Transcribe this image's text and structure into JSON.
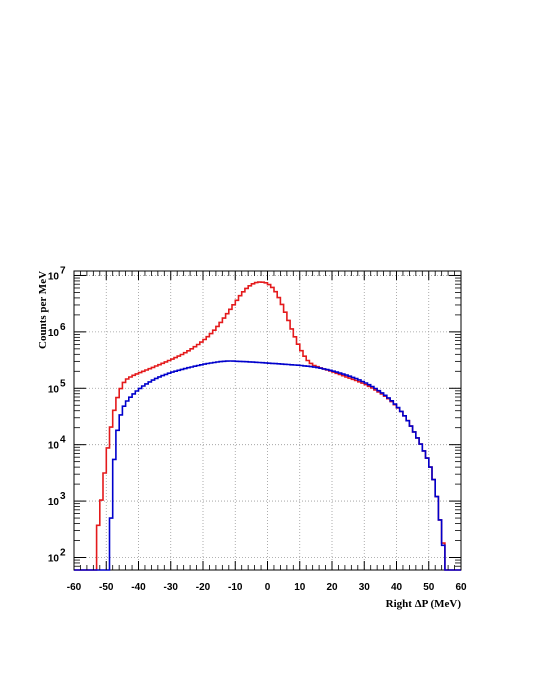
{
  "chart_data": {
    "type": "line",
    "title": "",
    "xlabel": "Right ΔP (MeV)",
    "ylabel": "Counts per MeV",
    "xlim": [
      -60,
      60
    ],
    "ylim": [
      60,
      12000000
    ],
    "yscale": "log",
    "grid": true,
    "legend": "none",
    "x_ticks": [
      -60,
      -50,
      -40,
      -30,
      -20,
      -10,
      0,
      10,
      20,
      30,
      40,
      50,
      60
    ],
    "y_ticks": [
      {
        "value": 100,
        "base": "10",
        "exp": "2"
      },
      {
        "value": 1000,
        "base": "10",
        "exp": "3"
      },
      {
        "value": 10000,
        "base": "10",
        "exp": "4"
      },
      {
        "value": 100000,
        "base": "10",
        "exp": "5"
      },
      {
        "value": 1000000,
        "base": "10",
        "exp": "6"
      },
      {
        "value": 10000000,
        "base": "10",
        "exp": "7"
      }
    ],
    "series": [
      {
        "color": "#e41a1c",
        "points": [
          [
            -53,
            230
          ],
          [
            -52,
            600
          ],
          [
            -51,
            1800
          ],
          [
            -50,
            5500
          ],
          [
            -49,
            14000
          ],
          [
            -48,
            30000
          ],
          [
            -47,
            55000
          ],
          [
            -46,
            85000
          ],
          [
            -45,
            115000
          ],
          [
            -44,
            140000
          ],
          [
            -42,
            165000
          ],
          [
            -40,
            185000
          ],
          [
            -38,
            205000
          ],
          [
            -36,
            228000
          ],
          [
            -34,
            255000
          ],
          [
            -32,
            285000
          ],
          [
            -30,
            320000
          ],
          [
            -28,
            360000
          ],
          [
            -26,
            410000
          ],
          [
            -24,
            480000
          ],
          [
            -22,
            570000
          ],
          [
            -20,
            690000
          ],
          [
            -18,
            870000
          ],
          [
            -16,
            1150000
          ],
          [
            -14,
            1600000
          ],
          [
            -12,
            2300000
          ],
          [
            -10,
            3300000
          ],
          [
            -8,
            4800000
          ],
          [
            -6,
            6300000
          ],
          [
            -4,
            7400000
          ],
          [
            -2,
            7700000
          ],
          [
            0,
            7300000
          ],
          [
            2,
            5800000
          ],
          [
            4,
            3600000
          ],
          [
            6,
            1900000
          ],
          [
            8,
            950000
          ],
          [
            10,
            520000
          ],
          [
            12,
            330000
          ],
          [
            14,
            260000
          ],
          [
            16,
            235000
          ],
          [
            18,
            215000
          ],
          [
            20,
            198000
          ],
          [
            22,
            180000
          ],
          [
            24,
            163000
          ],
          [
            26,
            148000
          ],
          [
            28,
            134000
          ],
          [
            30,
            120000
          ],
          [
            32,
            105000
          ],
          [
            34,
            90000
          ],
          [
            36,
            76000
          ],
          [
            38,
            62000
          ],
          [
            40,
            48000
          ],
          [
            42,
            36000
          ],
          [
            44,
            24000
          ],
          [
            46,
            15000
          ],
          [
            48,
            9000
          ],
          [
            50,
            5000
          ],
          [
            51,
            3200
          ],
          [
            52,
            1800
          ],
          [
            53,
            800
          ],
          [
            54,
            270
          ],
          [
            55,
            120
          ]
        ]
      },
      {
        "color": "#0000cc",
        "points": [
          [
            -49,
            100
          ],
          [
            -48,
            2500
          ],
          [
            -47,
            12000
          ],
          [
            -46,
            27000
          ],
          [
            -45,
            42000
          ],
          [
            -44,
            55000
          ],
          [
            -42,
            75000
          ],
          [
            -40,
            95000
          ],
          [
            -38,
            115000
          ],
          [
            -36,
            135000
          ],
          [
            -34,
            155000
          ],
          [
            -32,
            172000
          ],
          [
            -30,
            190000
          ],
          [
            -28,
            205000
          ],
          [
            -26,
            220000
          ],
          [
            -24,
            235000
          ],
          [
            -22,
            250000
          ],
          [
            -20,
            265000
          ],
          [
            -18,
            278000
          ],
          [
            -16,
            290000
          ],
          [
            -14,
            300000
          ],
          [
            -12,
            305000
          ],
          [
            -10,
            302000
          ],
          [
            -8,
            298000
          ],
          [
            -6,
            295000
          ],
          [
            -4,
            290000
          ],
          [
            -2,
            285000
          ],
          [
            0,
            280000
          ],
          [
            2,
            275000
          ],
          [
            4,
            270000
          ],
          [
            6,
            265000
          ],
          [
            8,
            260000
          ],
          [
            10,
            255000
          ],
          [
            12,
            248000
          ],
          [
            14,
            240000
          ],
          [
            16,
            230000
          ],
          [
            18,
            218000
          ],
          [
            20,
            205000
          ],
          [
            22,
            190000
          ],
          [
            24,
            175000
          ],
          [
            26,
            160000
          ],
          [
            28,
            145000
          ],
          [
            30,
            128000
          ],
          [
            32,
            112000
          ],
          [
            34,
            95000
          ],
          [
            36,
            79000
          ],
          [
            38,
            64000
          ],
          [
            40,
            49000
          ],
          [
            42,
            36000
          ],
          [
            44,
            24000
          ],
          [
            46,
            15000
          ],
          [
            48,
            9000
          ],
          [
            50,
            5000
          ],
          [
            51,
            3200
          ],
          [
            52,
            1800
          ],
          [
            53,
            800
          ],
          [
            54,
            270
          ],
          [
            55,
            100
          ]
        ]
      }
    ]
  }
}
